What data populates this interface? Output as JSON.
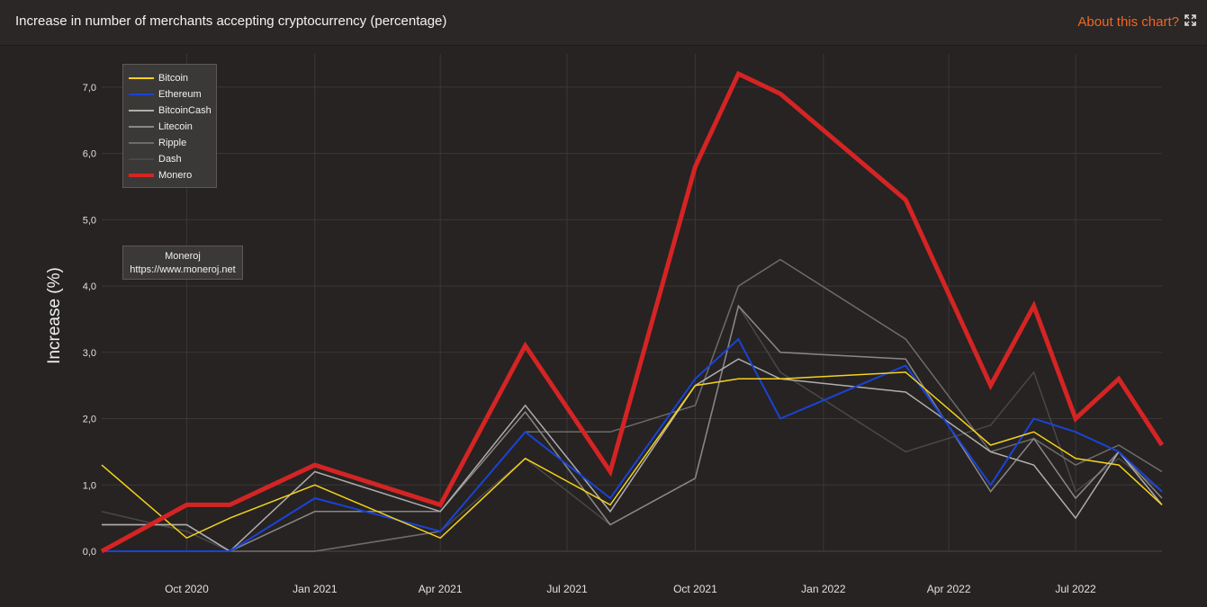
{
  "header": {
    "title": "Increase in number of merchants accepting cryptocurrency (percentage)",
    "about_label": "About this chart?",
    "expand_icon": "expand-icon"
  },
  "credit": {
    "name": "Moneroj",
    "url": "https://www.moneroj.net"
  },
  "colors": {
    "background": "#262322",
    "grid": "#3a3736",
    "accent": "#f26522"
  },
  "chart_data": {
    "type": "line",
    "ylabel": "Increase (%)",
    "xlabel": "",
    "ylim": [
      0,
      7.5
    ],
    "yticks": [
      0,
      1,
      2,
      3,
      4,
      5,
      6,
      7
    ],
    "ytick_labels": [
      "0,0",
      "1,0",
      "2,0",
      "3,0",
      "4,0",
      "5,0",
      "6,0",
      "7,0"
    ],
    "xlim": [
      "2020-08-01",
      "2022-09-01"
    ],
    "xticks": [
      "2020-10-01",
      "2021-01-01",
      "2021-04-01",
      "2021-07-01",
      "2021-10-01",
      "2022-01-01",
      "2022-04-01",
      "2022-07-01"
    ],
    "xtick_labels": [
      "Oct 2020",
      "Jan 2021",
      "Apr 2021",
      "Jul 2021",
      "Oct 2021",
      "Jan 2022",
      "Apr 2022",
      "Jul 2022"
    ],
    "grid": true,
    "legend_position": "top-left",
    "x": [
      "2020-08-01",
      "2020-10-01",
      "2020-11-01",
      "2021-01-01",
      "2021-04-01",
      "2021-06-01",
      "2021-08-01",
      "2021-10-01",
      "2021-11-01",
      "2021-12-01",
      "2022-03-01",
      "2022-05-01",
      "2022-06-01",
      "2022-07-01",
      "2022-08-01",
      "2022-09-01"
    ],
    "series": [
      {
        "name": "Dash",
        "color": "#4a4847",
        "width": 1.5,
        "values": [
          0.6,
          0.3,
          0.0,
          0.0,
          0.3,
          1.4,
          0.4,
          1.1,
          3.7,
          2.7,
          1.5,
          1.9,
          2.7,
          0.9,
          1.4,
          0.9
        ]
      },
      {
        "name": "Ripple",
        "color": "#6e6c6a",
        "width": 1.5,
        "values": [
          0.0,
          0.0,
          0.0,
          0.0,
          0.3,
          1.8,
          1.8,
          2.2,
          4.0,
          4.4,
          3.2,
          1.5,
          1.7,
          1.3,
          1.6,
          1.2
        ]
      },
      {
        "name": "Litecoin",
        "color": "#8a8886",
        "width": 1.5,
        "values": [
          0.4,
          0.4,
          0.0,
          0.6,
          0.6,
          2.1,
          0.4,
          1.1,
          3.7,
          3.0,
          2.9,
          0.9,
          1.7,
          0.8,
          1.5,
          0.8
        ]
      },
      {
        "name": "BitcoinCash",
        "color": "#b0aeac",
        "width": 1.5,
        "values": [
          0.4,
          0.4,
          0.0,
          1.2,
          0.6,
          2.2,
          0.6,
          2.5,
          2.9,
          2.6,
          2.4,
          1.5,
          1.3,
          0.5,
          1.5,
          0.7
        ]
      },
      {
        "name": "Ethereum",
        "color": "#1a43d6",
        "width": 2,
        "values": [
          0.0,
          0.0,
          0.0,
          0.8,
          0.3,
          1.8,
          0.8,
          2.6,
          3.2,
          2.0,
          2.8,
          1.0,
          2.0,
          1.8,
          1.5,
          0.9
        ]
      },
      {
        "name": "Bitcoin",
        "color": "#f5d21e",
        "width": 1.5,
        "values": [
          1.3,
          0.2,
          0.5,
          1.0,
          0.2,
          1.4,
          0.7,
          2.5,
          2.6,
          2.6,
          2.7,
          1.6,
          1.8,
          1.4,
          1.3,
          0.7
        ]
      },
      {
        "name": "Monero",
        "color": "#d42424",
        "width": 5,
        "values": [
          0.0,
          0.7,
          0.7,
          1.3,
          0.7,
          3.1,
          1.2,
          5.8,
          7.2,
          6.9,
          5.3,
          2.5,
          3.7,
          2.0,
          2.6,
          1.6
        ]
      }
    ],
    "legend_order": [
      "Bitcoin",
      "Ethereum",
      "BitcoinCash",
      "Litecoin",
      "Ripple",
      "Dash",
      "Monero"
    ]
  }
}
